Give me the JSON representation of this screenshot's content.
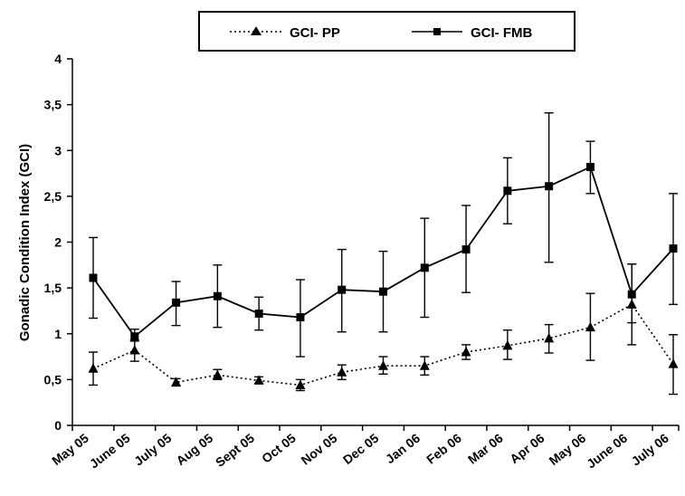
{
  "chart_data": {
    "type": "line",
    "title": "",
    "xlabel": "",
    "ylabel": "Gonadic Condition Index (GCI)",
    "ylim": [
      0,
      4
    ],
    "yticks": [
      "0",
      "0,5",
      "1",
      "1,5",
      "2",
      "2,5",
      "3",
      "3,5",
      "4"
    ],
    "categories": [
      "May 05",
      "June 05",
      "July 05",
      "Aug 05",
      "Sept 05",
      "Oct 05",
      "Nov 05",
      "Dec 05",
      "Jan 06",
      "Feb 06",
      "Mar 06",
      "Apr 06",
      "May 06",
      "June 06",
      "July 06"
    ],
    "grid": false,
    "legend_position": "top",
    "series": [
      {
        "name": "GCI- PP",
        "marker": "triangle",
        "line_style": "dotted",
        "color": "#000000",
        "values": [
          0.62,
          0.82,
          0.47,
          0.55,
          0.49,
          0.44,
          0.58,
          0.65,
          0.65,
          0.8,
          0.87,
          0.95,
          1.07,
          1.32,
          0.67
        ],
        "err_low": [
          0.44,
          0.7,
          0.43,
          0.5,
          0.46,
          0.38,
          0.5,
          0.56,
          0.55,
          0.72,
          0.72,
          0.79,
          0.71,
          0.88,
          0.34
        ],
        "err_high": [
          0.8,
          0.92,
          0.51,
          0.61,
          0.53,
          0.5,
          0.66,
          0.75,
          0.75,
          0.88,
          1.04,
          1.1,
          1.44,
          1.76,
          0.99
        ]
      },
      {
        "name": "GCI- FMB",
        "marker": "square",
        "line_style": "solid",
        "color": "#000000",
        "values": [
          1.61,
          0.97,
          1.34,
          1.41,
          1.22,
          1.18,
          1.48,
          1.46,
          1.72,
          1.92,
          2.56,
          2.61,
          2.82,
          1.43,
          1.93
        ],
        "err_low": [
          1.17,
          0.93,
          1.09,
          1.07,
          1.04,
          0.75,
          1.02,
          1.02,
          1.18,
          1.45,
          2.2,
          1.78,
          2.53,
          1.12,
          1.32
        ],
        "err_high": [
          2.05,
          1.05,
          1.57,
          1.75,
          1.4,
          1.59,
          1.92,
          1.9,
          2.26,
          2.4,
          2.92,
          3.41,
          3.1,
          1.76,
          2.53
        ]
      }
    ]
  }
}
